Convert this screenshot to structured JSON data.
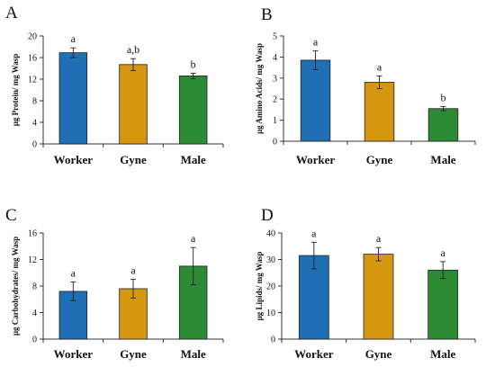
{
  "chart_data": [
    {
      "type": "bar",
      "panel": "A",
      "ylabel": "µg Protein/ mg Wasp",
      "categories": [
        "Worker",
        "Gyne",
        "Male"
      ],
      "values": [
        16.9,
        14.7,
        12.6
      ],
      "errors": [
        0.9,
        1.1,
        0.5
      ],
      "significance": [
        "a",
        "a,b",
        "b"
      ],
      "ylim": [
        0,
        20
      ],
      "yticks": [
        0,
        4,
        8,
        12,
        16,
        20
      ],
      "colors": [
        "#1f6fb5",
        "#d4970f",
        "#2e8b35"
      ]
    },
    {
      "type": "bar",
      "panel": "B",
      "ylabel": "µg Amino Acids/ mg Wasp",
      "categories": [
        "Worker",
        "Gyne",
        "Male"
      ],
      "values": [
        3.85,
        2.8,
        1.55
      ],
      "errors": [
        0.45,
        0.3,
        0.1
      ],
      "significance": [
        "a",
        "a",
        "b"
      ],
      "ylim": [
        0,
        5
      ],
      "yticks": [
        0,
        1,
        2,
        3,
        4,
        5
      ],
      "colors": [
        "#1f6fb5",
        "#d4970f",
        "#2e8b35"
      ]
    },
    {
      "type": "bar",
      "panel": "C",
      "ylabel": "µg Carbohydrates/ mg Wasp",
      "categories": [
        "Worker",
        "Gyne",
        "Male"
      ],
      "values": [
        7.2,
        7.6,
        11.0
      ],
      "errors": [
        1.4,
        1.4,
        2.8
      ],
      "significance": [
        "a",
        "a",
        "a"
      ],
      "ylim": [
        0,
        16
      ],
      "yticks": [
        0,
        4,
        8,
        12,
        16
      ],
      "colors": [
        "#1f6fb5",
        "#d4970f",
        "#2e8b35"
      ]
    },
    {
      "type": "bar",
      "panel": "D",
      "ylabel": "µg Lipids/ mg Wasp",
      "categories": [
        "Worker",
        "Gyne",
        "Male"
      ],
      "values": [
        31.5,
        32.0,
        26.0
      ],
      "errors": [
        5.0,
        2.5,
        3.2
      ],
      "significance": [
        "a",
        "a",
        "a"
      ],
      "ylim": [
        0,
        40
      ],
      "yticks": [
        0,
        10,
        20,
        30,
        40
      ],
      "colors": [
        "#1f6fb5",
        "#d4970f",
        "#2e8b35"
      ]
    }
  ]
}
